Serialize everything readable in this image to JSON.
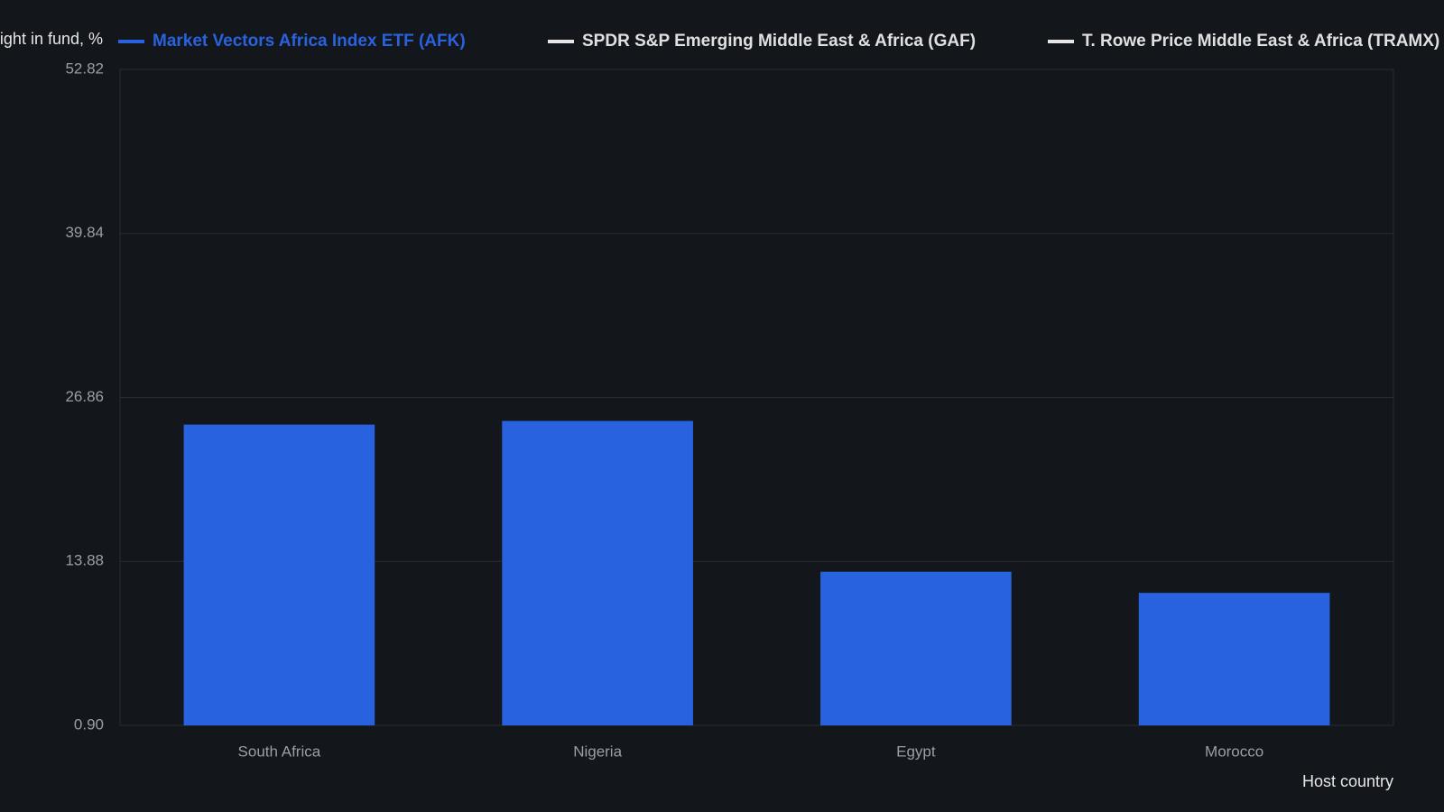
{
  "chart_data": {
    "type": "bar",
    "y_label": "Weight in fund, %",
    "x_label": "Host country",
    "categories": [
      "South Africa",
      "Nigeria",
      "Egypt",
      "Morocco"
    ],
    "series": [
      {
        "name": "Market Vectors Africa Index ETF (AFK)",
        "color": "#2962de",
        "values": [
          24.71,
          25.0,
          13.06,
          11.39
        ]
      },
      {
        "name": "SPDR S&P Emerging Middle East & Africa (GAF)",
        "color": "#e6e6e6",
        "values": [
          null,
          null,
          null,
          null
        ]
      },
      {
        "name": "T. Rowe Price Middle East & Africa (TRAMX)",
        "color": "#e6e6e6",
        "values": [
          null,
          null,
          null,
          null
        ]
      }
    ],
    "ylim": [
      0.9,
      52.82
    ],
    "yticks": [
      {
        "value": 0.9,
        "label": "0.90"
      },
      13.88,
      26.86,
      39.84,
      52.82
    ],
    "grid": true
  }
}
